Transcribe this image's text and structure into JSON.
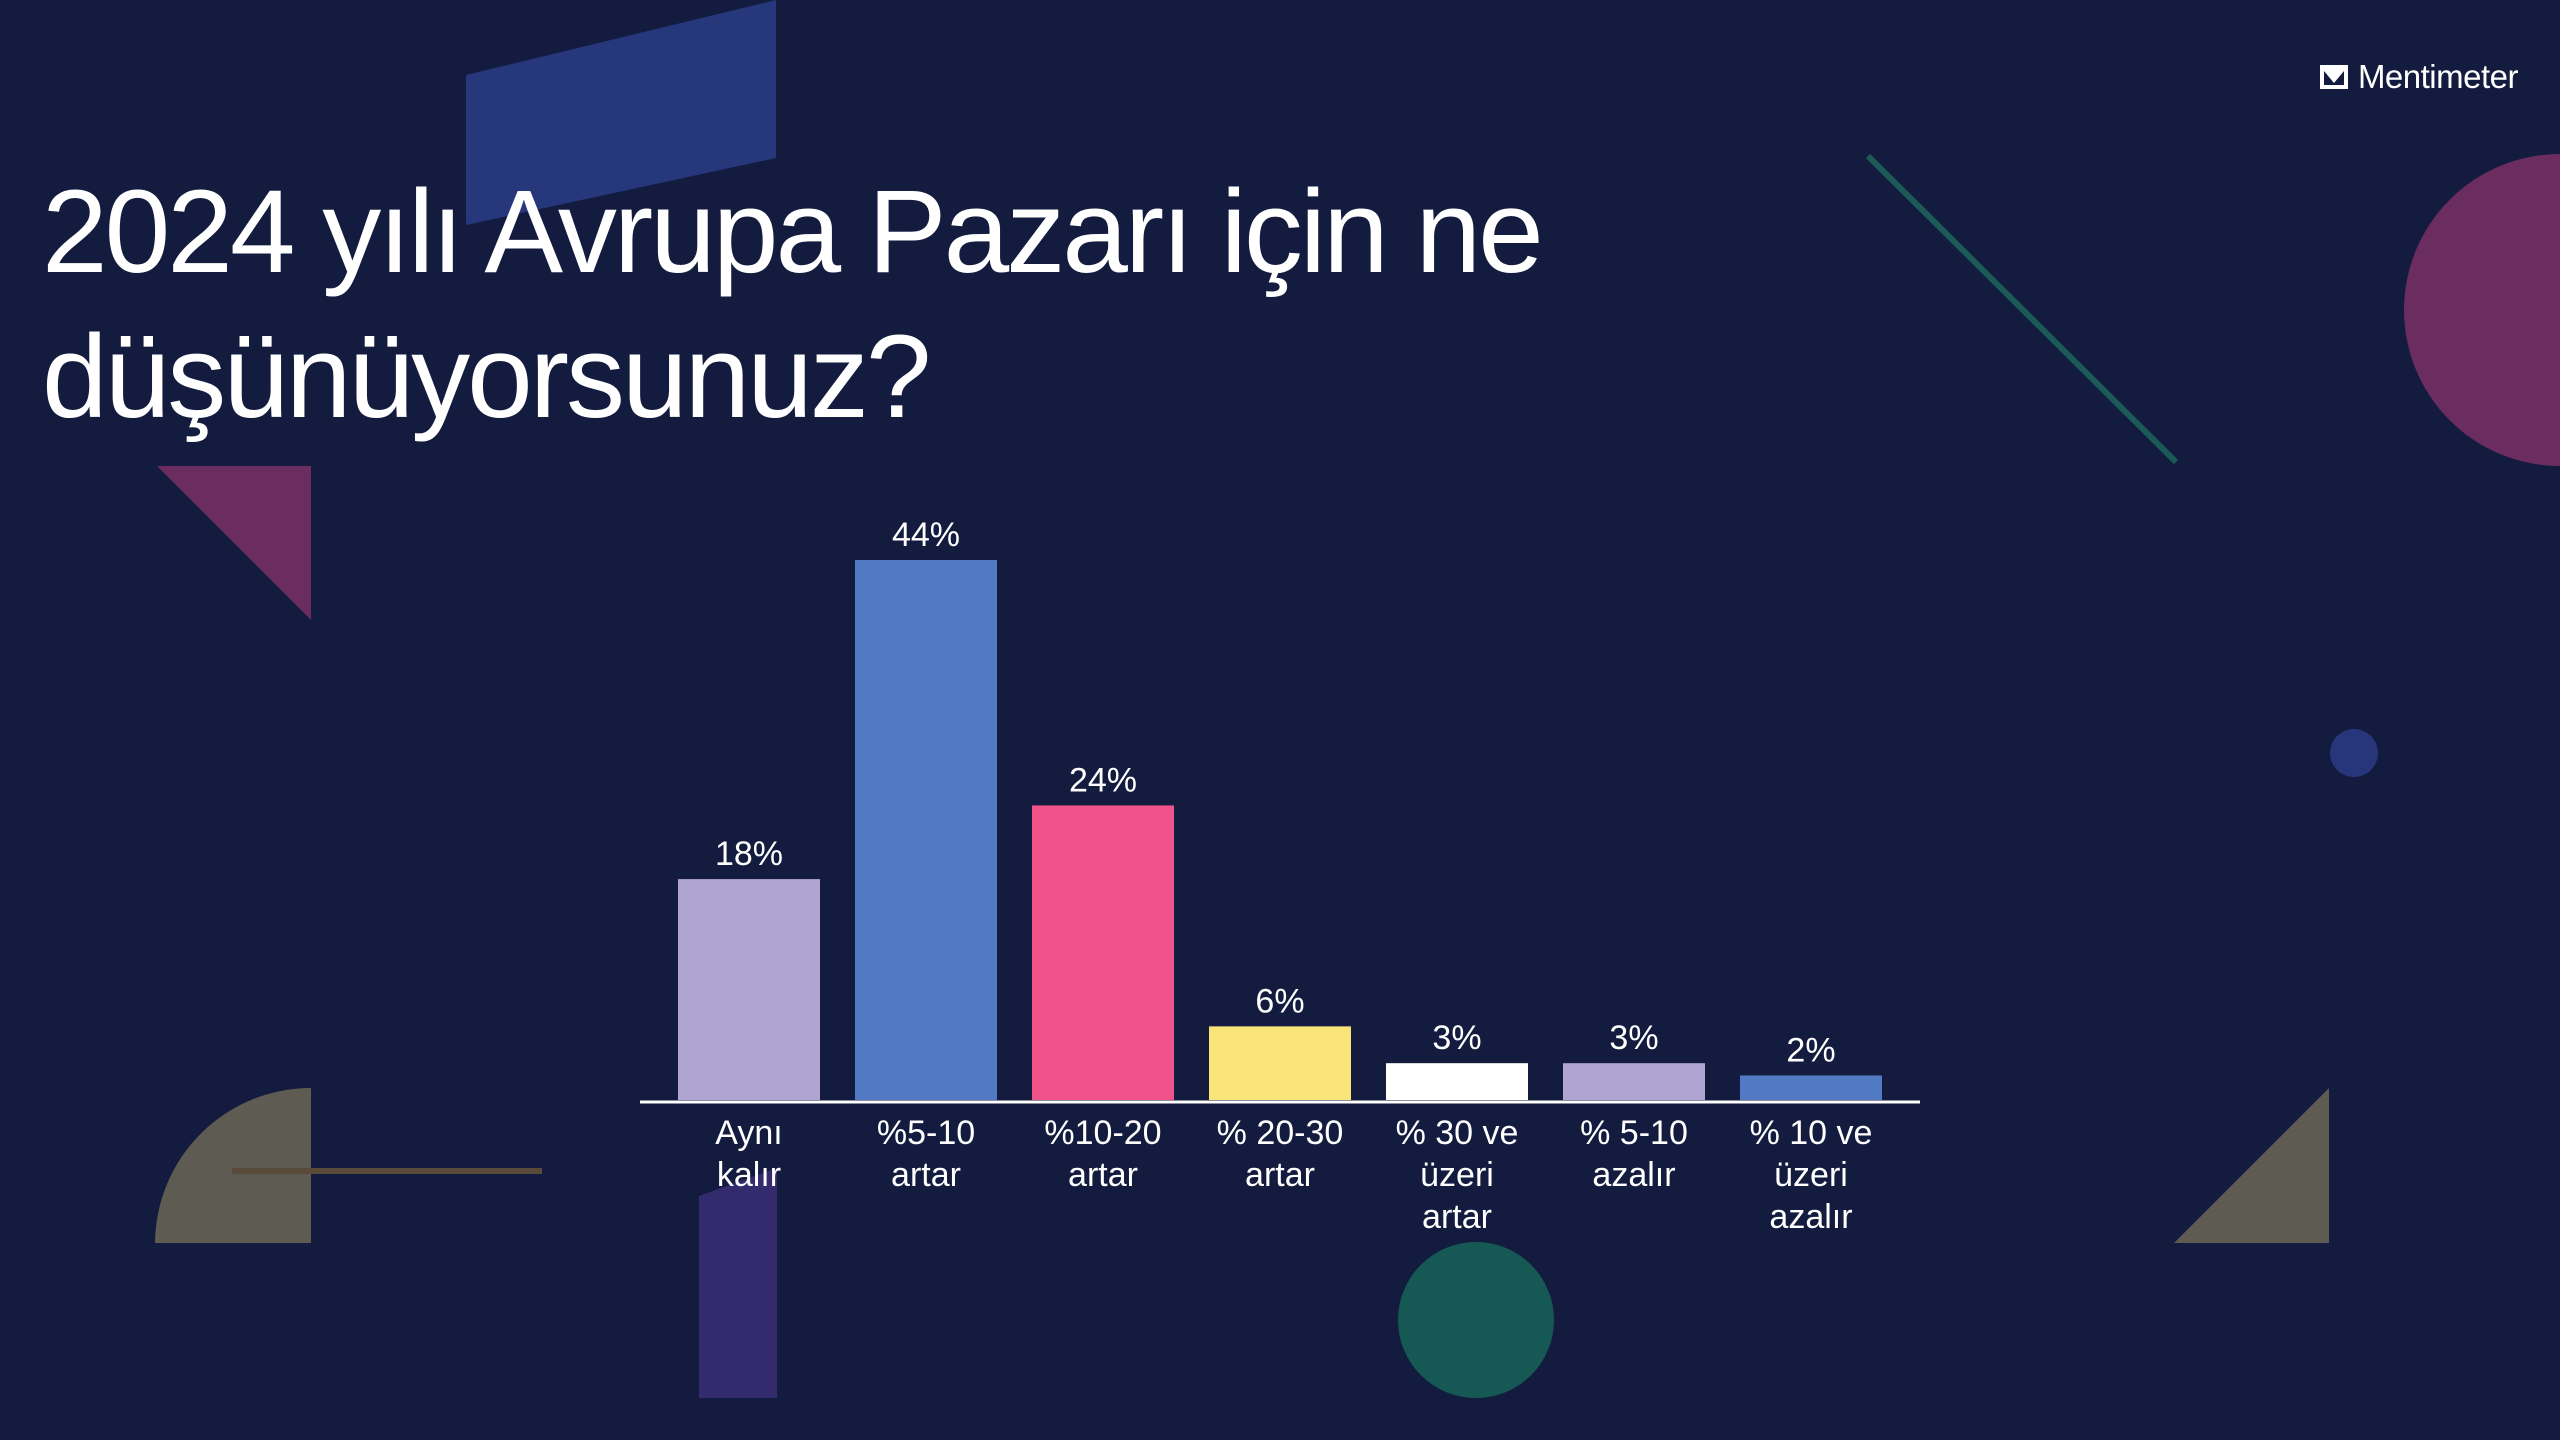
{
  "brand": {
    "name": "Mentimeter"
  },
  "chart_data": {
    "type": "bar",
    "title": "2024 yılı Avrupa Pazarı için ne düşünüyorsunuz?",
    "categories": [
      [
        "Aynı",
        "kalır"
      ],
      [
        "%5-10",
        "artar"
      ],
      [
        "%10-20",
        "artar"
      ],
      [
        "% 20-30",
        "artar"
      ],
      [
        "% 30 ve",
        "üzeri",
        "artar"
      ],
      [
        "% 5-10",
        "azalır"
      ],
      [
        "% 10 ve",
        "üzeri",
        "azalır"
      ]
    ],
    "values": [
      18,
      44,
      24,
      6,
      3,
      3,
      2
    ],
    "value_labels": [
      "18%",
      "44%",
      "24%",
      "6%",
      "3%",
      "3%",
      "2%"
    ],
    "colors": [
      "#b0a4d3",
      "#527ac4",
      "#ef538a",
      "#f9e47a",
      "#ffffff",
      "#b0a4d3",
      "#527ac4"
    ],
    "ylim": [
      0,
      44
    ],
    "grid": false,
    "legend": "none"
  }
}
